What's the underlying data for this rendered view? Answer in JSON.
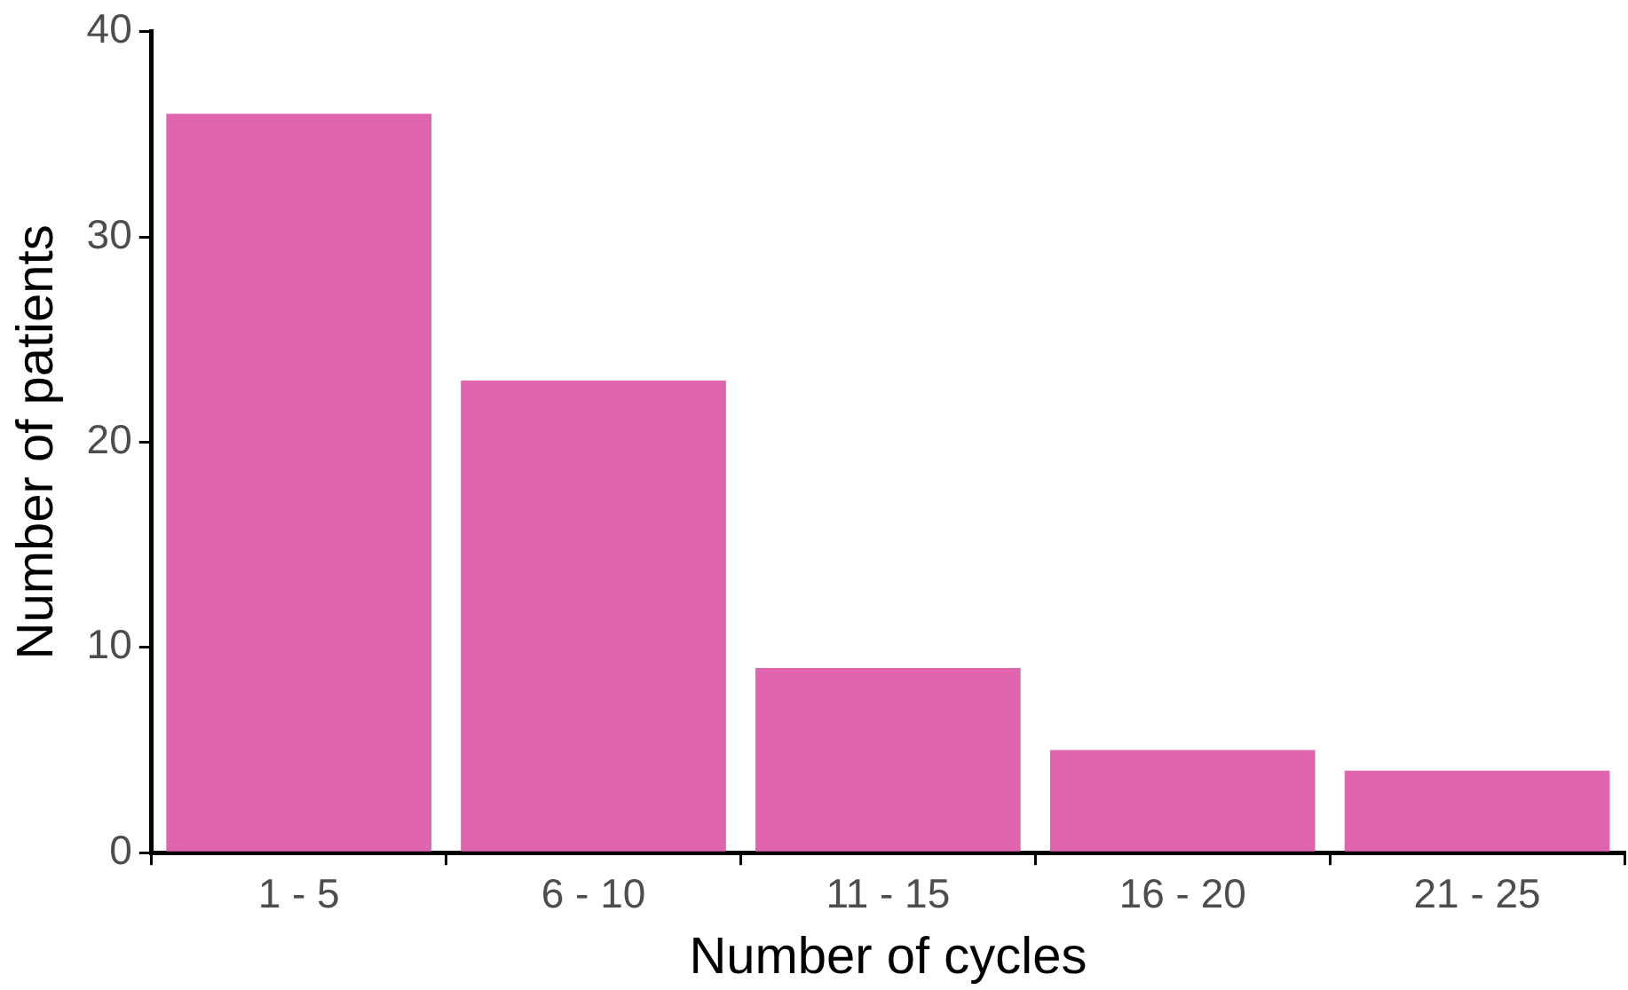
{
  "chart_data": {
    "type": "bar",
    "xlabel": "Number of cycles",
    "ylabel": "Number of patients",
    "categories": [
      "1 - 5",
      "6 - 10",
      "11 - 15",
      "16 - 20",
      "21 - 25"
    ],
    "values": [
      36,
      23,
      9,
      5,
      4
    ],
    "color": "#e065ae",
    "ylim": [
      0,
      40
    ],
    "yticks": [
      0,
      10,
      20,
      30,
      40
    ],
    "grid": false,
    "legend": false
  }
}
